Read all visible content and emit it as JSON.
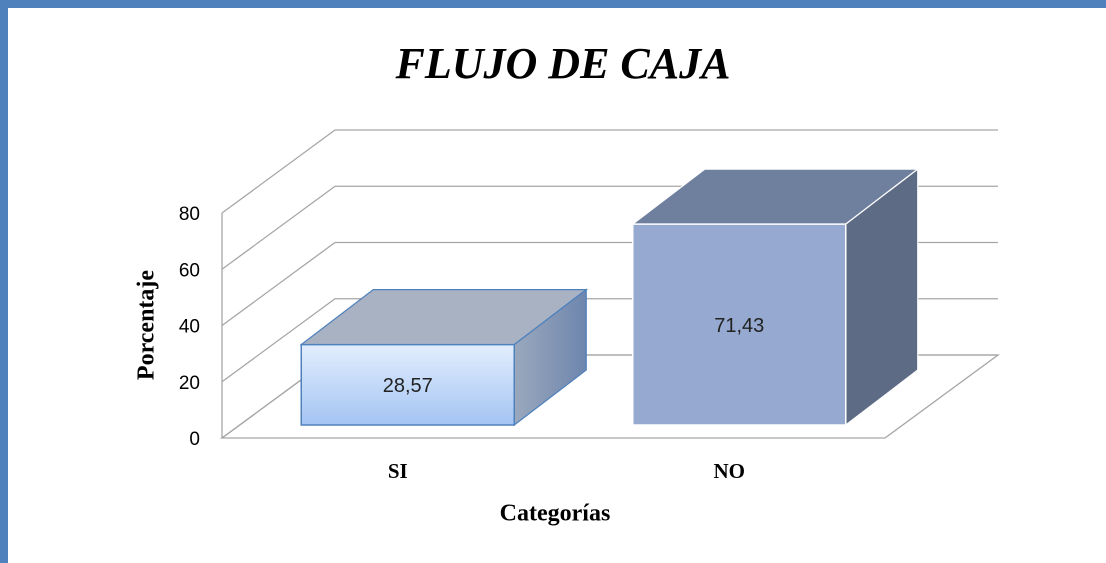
{
  "chart_data": {
    "type": "bar3d",
    "title": "FLUJO DE CAJA",
    "x_label": "Categorías",
    "y_label": "Porcentaje",
    "categories": [
      "SI",
      "NO"
    ],
    "values": [
      28.57,
      71.43
    ],
    "value_labels": [
      "28,57",
      "71,43"
    ],
    "colors": [
      "#b9d3f8",
      "#95a9d1"
    ],
    "ylim": [
      0,
      80
    ],
    "yticks": [
      0,
      20,
      40,
      60,
      80
    ],
    "grid": true
  }
}
